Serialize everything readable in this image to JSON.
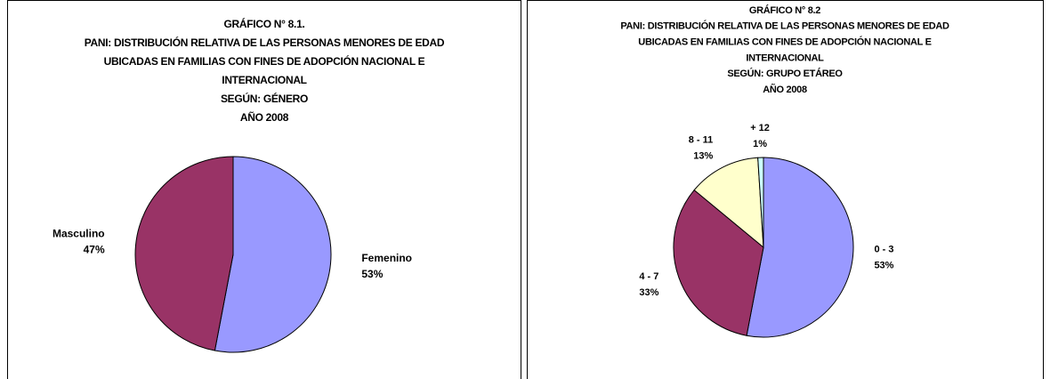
{
  "chart_data": [
    {
      "type": "pie",
      "title": [
        "GRÁFICO N° 8.1.",
        "PANI: DISTRIBUCIÓN RELATIVA DE LAS PERSONAS MENORES DE EDAD",
        "UBICADAS EN FAMILIAS CON FINES DE ADOPCIÓN NACIONAL E",
        "INTERNACIONAL",
        "SEGÚN: GÉNERO",
        "AÑO 2008"
      ],
      "categories": [
        "Femenino",
        "Masculino"
      ],
      "values": [
        53,
        47
      ],
      "value_labels": [
        "53%",
        "47%"
      ],
      "colors": [
        "#9999ff",
        "#993366"
      ]
    },
    {
      "type": "pie",
      "title": [
        "GRÁFICO N° 8.2",
        "PANI: DISTRIBUCIÓN RELATIVA DE LAS PERSONAS MENORES DE EDAD",
        "UBICADAS EN FAMILIAS CON FINES DE ADOPCIÓN NACIONAL E",
        "INTERNACIONAL",
        "SEGÚN: GRUPO ETÁREO",
        "AÑO 2008"
      ],
      "categories": [
        "0 - 3",
        "4 - 7",
        "8 - 11",
        "+ 12"
      ],
      "values": [
        53,
        33,
        13,
        1
      ],
      "value_labels": [
        "53%",
        "33%",
        "13%",
        "1%"
      ],
      "colors": [
        "#9999ff",
        "#993366",
        "#ffffcc",
        "#ccffff"
      ]
    }
  ]
}
